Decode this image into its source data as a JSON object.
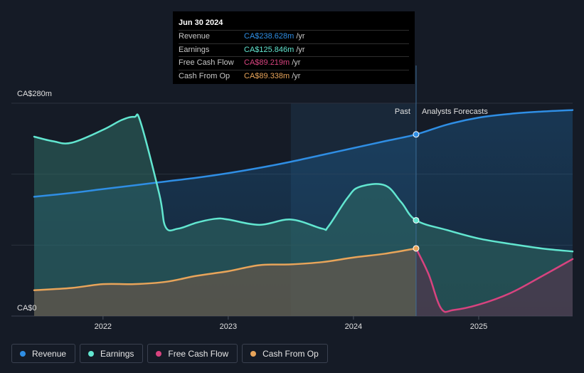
{
  "tooltip": {
    "date": "Jun 30 2024",
    "rows": [
      {
        "label": "Revenue",
        "value": "CA$238.628m",
        "unit": "/yr",
        "color": "#2f8ee4"
      },
      {
        "label": "Earnings",
        "value": "CA$125.846m",
        "unit": "/yr",
        "color": "#62e6d0"
      },
      {
        "label": "Free Cash Flow",
        "value": "CA$89.219m",
        "unit": "/yr",
        "color": "#d8437f"
      },
      {
        "label": "Cash From Op",
        "value": "CA$89.338m",
        "unit": "/yr",
        "color": "#e8a45a"
      }
    ]
  },
  "legend": [
    {
      "label": "Revenue",
      "color": "#2f8ee4"
    },
    {
      "label": "Earnings",
      "color": "#62e6d0"
    },
    {
      "label": "Free Cash Flow",
      "color": "#d8437f"
    },
    {
      "label": "Cash From Op",
      "color": "#e8a45a"
    }
  ],
  "chart_data": {
    "type": "area",
    "title": "",
    "xlabel": "",
    "ylabel": "",
    "y_tick_labels": [
      "CA$0",
      "CA$280m"
    ],
    "ylim": [
      0,
      280
    ],
    "xlim": [
      2021.45,
      2025.75
    ],
    "x_tick_labels": [
      "2022",
      "2023",
      "2024",
      "2025"
    ],
    "x_ticks": [
      2022,
      2023,
      2024,
      2025
    ],
    "past_label": "Past",
    "forecast_label": "Analysts Forecasts",
    "past_end": 2024.5,
    "highlight_start": 2023.5,
    "series": [
      {
        "name": "Revenue",
        "color": "#2f8ee4",
        "points": [
          [
            2021.45,
            157
          ],
          [
            2021.75,
            162
          ],
          [
            2022.0,
            167
          ],
          [
            2022.25,
            172
          ],
          [
            2022.5,
            177
          ],
          [
            2022.75,
            182
          ],
          [
            2023.0,
            188
          ],
          [
            2023.25,
            195
          ],
          [
            2023.5,
            203
          ],
          [
            2023.75,
            212
          ],
          [
            2024.0,
            221
          ],
          [
            2024.25,
            230
          ],
          [
            2024.5,
            239
          ],
          [
            2024.75,
            252
          ],
          [
            2025.0,
            261
          ],
          [
            2025.25,
            266
          ],
          [
            2025.5,
            269
          ],
          [
            2025.75,
            271
          ]
        ]
      },
      {
        "name": "Earnings",
        "color": "#62e6d0",
        "points": [
          [
            2021.45,
            236
          ],
          [
            2021.6,
            230
          ],
          [
            2021.75,
            228
          ],
          [
            2022.0,
            245
          ],
          [
            2022.15,
            258
          ],
          [
            2022.25,
            262
          ],
          [
            2022.3,
            255
          ],
          [
            2022.45,
            160
          ],
          [
            2022.5,
            117
          ],
          [
            2022.6,
            115
          ],
          [
            2022.75,
            123
          ],
          [
            2022.9,
            128
          ],
          [
            2023.0,
            127
          ],
          [
            2023.25,
            120
          ],
          [
            2023.5,
            127
          ],
          [
            2023.75,
            115
          ],
          [
            2023.8,
            118
          ],
          [
            2023.95,
            155
          ],
          [
            2024.05,
            170
          ],
          [
            2024.25,
            172
          ],
          [
            2024.38,
            150
          ],
          [
            2024.5,
            126
          ],
          [
            2024.75,
            113
          ],
          [
            2025.0,
            102
          ],
          [
            2025.25,
            95
          ],
          [
            2025.5,
            89
          ],
          [
            2025.75,
            85
          ]
        ]
      },
      {
        "name": "Free Cash Flow",
        "color": "#d8437f",
        "points": [
          [
            2024.5,
            89
          ],
          [
            2024.6,
            55
          ],
          [
            2024.7,
            10
          ],
          [
            2024.8,
            8
          ],
          [
            2025.0,
            15
          ],
          [
            2025.25,
            30
          ],
          [
            2025.5,
            52
          ],
          [
            2025.75,
            75
          ]
        ]
      },
      {
        "name": "Cash From Op",
        "color": "#e8a45a",
        "points": [
          [
            2021.45,
            34
          ],
          [
            2021.75,
            37
          ],
          [
            2022.0,
            42
          ],
          [
            2022.25,
            42
          ],
          [
            2022.5,
            45
          ],
          [
            2022.75,
            53
          ],
          [
            2023.0,
            59
          ],
          [
            2023.25,
            67
          ],
          [
            2023.5,
            68
          ],
          [
            2023.75,
            71
          ],
          [
            2024.0,
            77
          ],
          [
            2024.25,
            82
          ],
          [
            2024.5,
            89
          ]
        ]
      }
    ]
  }
}
